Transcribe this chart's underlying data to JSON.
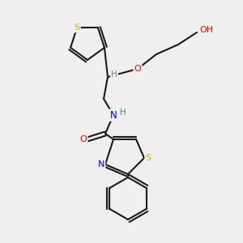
{
  "bg_color": "#efefef",
  "bond_color": "#1a1a1a",
  "bond_width": 1.5,
  "atom_colors": {
    "S": "#c8b400",
    "O": "#ff0000",
    "N": "#0000ff",
    "H": "#4a8a8a",
    "C": "#1a1a1a"
  }
}
